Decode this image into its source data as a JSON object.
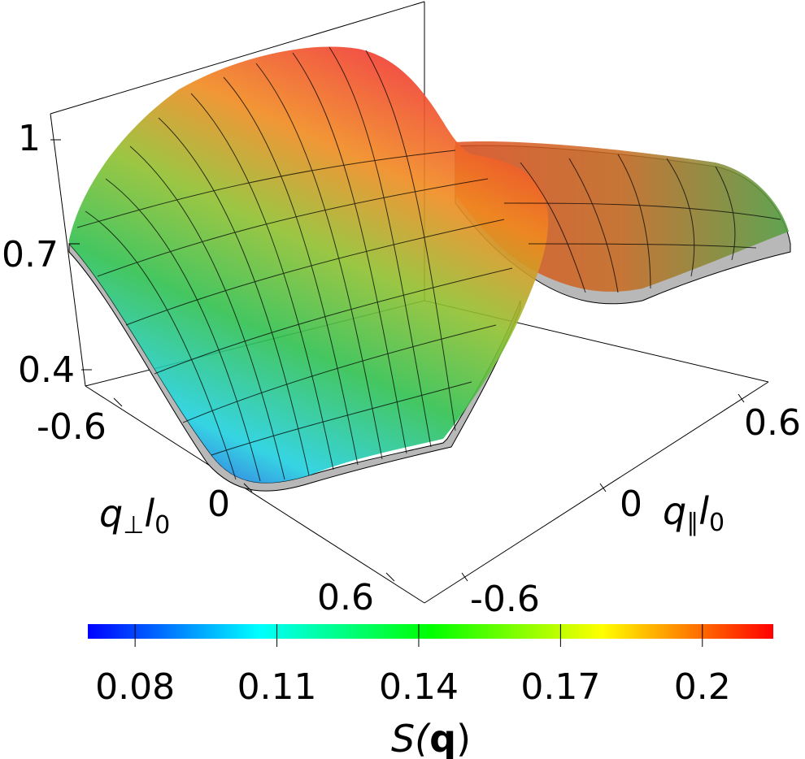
{
  "chart_data": {
    "type": "surface",
    "x_label": {
      "main": "q",
      "sub": "∥",
      "main2": "l",
      "sub2": "0"
    },
    "y_label": {
      "main": "q",
      "sub": "⊥",
      "main2": "l",
      "sub2": "0"
    },
    "x_ticks": [
      "-0.6",
      "0",
      "0.6"
    ],
    "y_ticks": [
      "-0.6",
      "0",
      "0.6"
    ],
    "z_ticks": [
      "0.4",
      "0.7",
      "1"
    ],
    "x_range": [
      -0.6,
      0.6
    ],
    "y_range": [
      -0.6,
      0.6
    ],
    "z_range": [
      0.4,
      1.0
    ],
    "colorbar": {
      "label_main": "S(",
      "label_bold": "q",
      "label_end": ")",
      "min": 0.07,
      "max": 0.215,
      "ticks": [
        0.08,
        0.11,
        0.14,
        0.17,
        0.2
      ],
      "tick_labels": [
        "0.08",
        "0.11",
        "0.14",
        "0.17",
        "0.2"
      ],
      "colors": [
        "#0000ff",
        "#00ffff",
        "#00ff00",
        "#ffff00",
        "#ff0000"
      ]
    }
  }
}
